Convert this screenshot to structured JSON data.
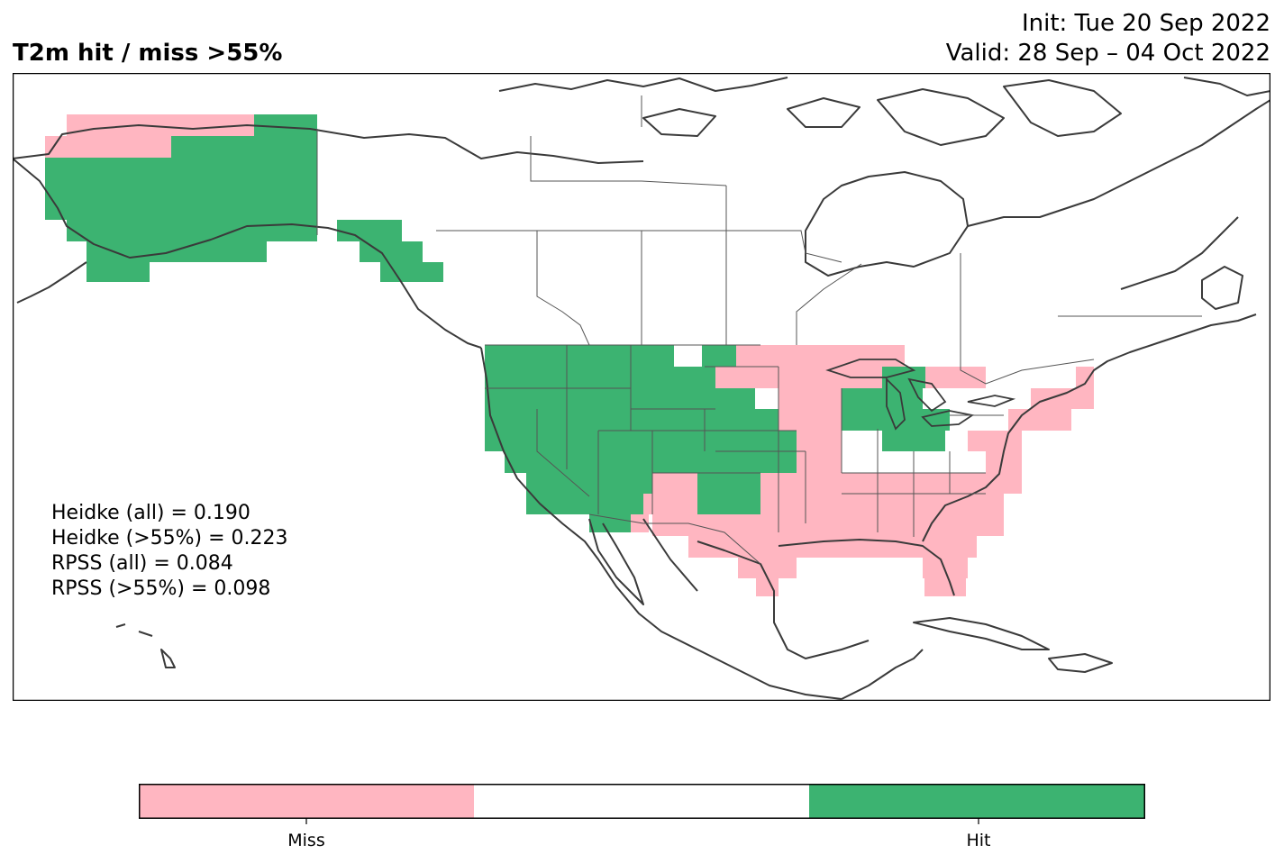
{
  "title": "T2m hit / miss  >55%",
  "init": "Init: Tue 20 Sep 2022",
  "valid": "Valid: 28 Sep – 04 Oct 2022",
  "stats": {
    "heidke_all": "Heidke (all) = 0.190",
    "heidke_55": "Heidke (>55%) = 0.223",
    "rpss_all": "RPSS (all) = 0.084",
    "rpss_55": "RPSS (>55%) = 0.098"
  },
  "legend": {
    "miss_label": "Miss",
    "hit_label": "Hit"
  },
  "colors": {
    "miss": "#ffb6c1",
    "neutral": "#ffffff",
    "hit": "#3cb371",
    "coast": "#3a3a3a",
    "border": "#555555"
  },
  "categories": [
    "miss",
    "neutral",
    "hit"
  ]
}
